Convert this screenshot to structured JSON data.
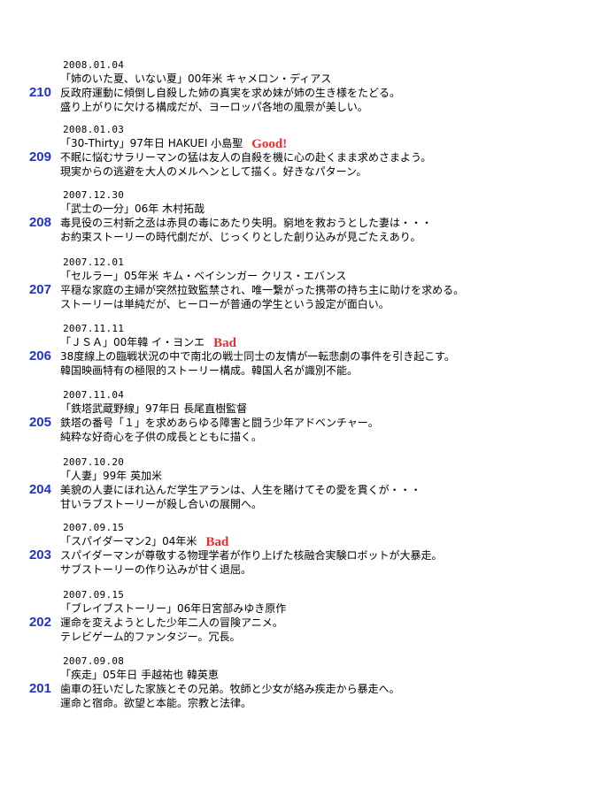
{
  "entries": [
    {
      "number": "210",
      "date": "2008.01.04",
      "heading": "「姉のいた夏、いない夏」00年米 キャメロン・ディアス",
      "tag": "",
      "line1": "反政府運動に傾倒し自殺した姉の真実を求め妹が姉の生き様をたどる。",
      "line2": "盛り上がりに欠ける構成だが、ヨーロッパ各地の風景が美しい。"
    },
    {
      "number": "209",
      "date": "2008.01.03",
      "heading": "「30-Thirty」97年日 HAKUEI 小島聖",
      "tag": "Good!",
      "line1": "不眠に悩むサラリーマンの猛は友人の自殺を機に心の赴くまま求めさまよう。",
      "line2": "現実からの逃避を大人のメルヘンとして描く。好きなパターン。"
    },
    {
      "number": "208",
      "date": "2007.12.30",
      "heading": "「武士の一分」06年 木村拓哉",
      "tag": "",
      "line1": "毒見役の三村新之丞は赤貝の毒にあたり失明。窮地を救おうとした妻は・・・",
      "line2": "お約束ストーリーの時代劇だが、じっくりとした創り込みが見ごたえあり。"
    },
    {
      "number": "207",
      "date": "2007.12.01",
      "heading": "「セルラー」05年米 キム・ベイシンガー クリス・エバンス",
      "tag": "",
      "line1": "平穏な家庭の主婦が突然拉致監禁され、唯一繋がった携帯の持ち主に助けを求める。",
      "line2": "ストーリーは単純だが、ヒーローが普通の学生という設定が面白い。"
    },
    {
      "number": "206",
      "date": "2007.11.11",
      "heading": "「ＪＳＡ」00年韓 イ・ヨンエ",
      "tag": "Bad",
      "line1": "38度線上の臨戦状況の中で南北の戦士同士の友情が一転悲劇の事件を引き起こす。",
      "line2": "韓国映画特有の極限的ストーリー構成。韓国人名が識別不能。"
    },
    {
      "number": "205",
      "date": "2007.11.04",
      "heading": "「鉄塔武蔵野線」97年日 長尾直樹監督",
      "tag": "",
      "line1": "鉄塔の番号「１」を求めあらゆる障害と闘う少年アドベンチャー。",
      "line2": "純粋な好奇心を子供の成長とともに描く。"
    },
    {
      "number": "204",
      "date": "2007.10.20",
      "heading": "「人妻」99年 英加米",
      "tag": "",
      "line1": "美貌の人妻にほれ込んだ学生アランは、人生を賭けてその愛を貫くが・・・",
      "line2": "甘いラブストーリーが殺し合いの展開へ。"
    },
    {
      "number": "203",
      "date": "2007.09.15",
      "heading": "「スパイダーマン2」04年米",
      "tag": "Bad",
      "line1": "スパイダーマンが尊敬する物理学者が作り上げた核融合実験ロボットが大暴走。",
      "line2": "サブストーリーの作り込みが甘く退屈。"
    },
    {
      "number": "202",
      "date": "2007.09.15",
      "heading": "「ブレイブストーリー」06年日宮部みゆき原作",
      "tag": "",
      "line1": "運命を変えようとした少年二人の冒険アニメ。",
      "line2": "テレビゲーム的ファンタジー。冗長。"
    },
    {
      "number": "201",
      "date": "2007.09.08",
      "heading": "「疾走」05年日 手越祐也 韓英恵",
      "tag": "",
      "line1": "歯車の狂いだした家族とその兄弟。牧師と少女が絡み疾走から暴走へ。",
      "line2": "運命と宿命。欲望と本能。宗教と法律。"
    }
  ]
}
